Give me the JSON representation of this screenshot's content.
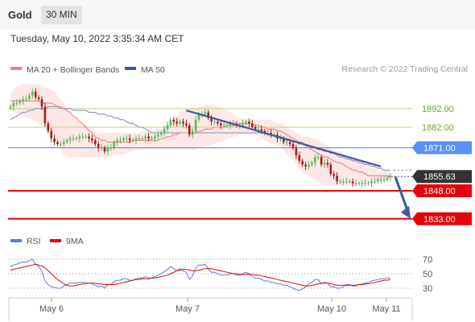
{
  "header": {
    "symbol": "Gold",
    "timeframe": "30 MIN"
  },
  "timestamp": "Tuesday, May 10, 2022 3:35:34 AM CET",
  "credit": "Research © 2022 Trading Central",
  "legend": {
    "ma20_bb": "MA 20 + Bollinger Bands",
    "ma50": "MA 50"
  },
  "rsi_legend": {
    "rsi": "RSI",
    "ma9": "9MA"
  },
  "colors": {
    "bull": "#5cb85c",
    "bear": "#a61c1c",
    "ma20": "#f08080",
    "ma50": "#8c8cc8",
    "band": "#fde3e3",
    "resistance": "#b8d87a",
    "pivot": "#5b8ff9",
    "support": "#e8000b",
    "trend": "#3c5aa0",
    "rsi_line": "#5b7bd5",
    "rsi_ma": "#e8000b"
  },
  "chart_data": [
    {
      "type": "candlestick",
      "symbol": "Gold",
      "interval": "30 MIN",
      "ylim": [
        1826,
        1907
      ],
      "x_tick_labels": [
        "May 6",
        "May 7",
        "May 10",
        "May 11"
      ],
      "levels": [
        {
          "value": 1892.0,
          "label": "1892.00",
          "kind": "resistance"
        },
        {
          "value": 1882.0,
          "label": "1882.00",
          "kind": "resistance"
        },
        {
          "value": 1871.0,
          "label": "1871.00",
          "kind": "pivot"
        },
        {
          "value": 1855.63,
          "label": "1855.63",
          "kind": "last"
        },
        {
          "value": 1848.0,
          "label": "1848.00",
          "kind": "support"
        },
        {
          "value": 1833.0,
          "label": "1833.00",
          "kind": "support"
        }
      ],
      "close": [
        1893,
        1895,
        1895,
        1896,
        1897,
        1897,
        1899,
        1901,
        1898,
        1897,
        1893,
        1884,
        1880,
        1876,
        1874,
        1873,
        1873,
        1874,
        1875,
        1876,
        1876,
        1876,
        1877,
        1877,
        1877,
        1876,
        1875,
        1873,
        1871,
        1871,
        1869,
        1871,
        1871,
        1874,
        1875,
        1875,
        1876,
        1876,
        1875,
        1875,
        1876,
        1876,
        1876,
        1877,
        1876,
        1876,
        1877,
        1878,
        1879,
        1881,
        1883,
        1886,
        1885,
        1884,
        1885,
        1884,
        1883,
        1878,
        1880,
        1886,
        1889,
        1889,
        1890,
        1887,
        1885,
        1885,
        1884,
        1883,
        1883,
        1883,
        1884,
        1884,
        1883,
        1883,
        1884,
        1885,
        1884,
        1882,
        1881,
        1881,
        1880,
        1879,
        1879,
        1878,
        1878,
        1876,
        1876,
        1874,
        1874,
        1873,
        1871,
        1867,
        1864,
        1862,
        1861,
        1862,
        1863,
        1866,
        1866,
        1862,
        1863,
        1862,
        1857,
        1856,
        1853,
        1853,
        1853,
        1853,
        1853,
        1852,
        1852,
        1852,
        1852,
        1852,
        1852,
        1853,
        1853,
        1854,
        1854,
        1854,
        1855,
        1855.63
      ],
      "ma20": [
        1896,
        1896,
        1896,
        1896,
        1896,
        1896,
        1896,
        1896,
        1896,
        1896,
        1895,
        1895,
        1895,
        1895,
        1894,
        1893,
        1893,
        1892,
        1891,
        1890,
        1888,
        1887,
        1885,
        1884,
        1882,
        1880,
        1879,
        1877,
        1876,
        1875,
        1875,
        1874,
        1874,
        1874,
        1874,
        1874,
        1874,
        1874,
        1874,
        1875,
        1875,
        1875,
        1875,
        1875,
        1875,
        1875,
        1875,
        1875,
        1876,
        1876,
        1877,
        1877,
        1878,
        1878,
        1879,
        1879,
        1879,
        1879,
        1879,
        1879,
        1880,
        1880,
        1881,
        1881,
        1881,
        1882,
        1882,
        1882,
        1882,
        1883,
        1883,
        1883,
        1883,
        1884,
        1884,
        1884,
        1884,
        1884,
        1883,
        1883,
        1882,
        1882,
        1881,
        1881,
        1881,
        1880,
        1880,
        1879,
        1878,
        1877,
        1876,
        1875,
        1874,
        1874,
        1872,
        1871,
        1870,
        1869,
        1868,
        1867,
        1866,
        1866,
        1865,
        1864,
        1863,
        1863,
        1862,
        1861,
        1860,
        1859,
        1859,
        1858,
        1858,
        1857,
        1856,
        1856,
        1856,
        1856,
        1856,
        1856,
        1856,
        1856
      ],
      "bollinger_upper": [
        1900,
        1902,
        1904,
        1904,
        1905,
        1905,
        1905,
        1905,
        1905,
        1905,
        1904,
        1903,
        1903,
        1902,
        1901,
        1899,
        1897,
        1895,
        1892,
        1890,
        1888,
        1886,
        1885,
        1884,
        1883,
        1882,
        1881,
        1880,
        1879,
        1879,
        1879,
        1879,
        1879,
        1879,
        1879,
        1879,
        1879,
        1879,
        1879,
        1879,
        1879,
        1879,
        1880,
        1880,
        1880,
        1880,
        1881,
        1881,
        1881,
        1882,
        1883,
        1884,
        1886,
        1888,
        1890,
        1891,
        1892,
        1892,
        1892,
        1892,
        1893,
        1893,
        1894,
        1894,
        1894,
        1894,
        1893,
        1893,
        1892,
        1891,
        1890,
        1889,
        1888,
        1887,
        1887,
        1886,
        1886,
        1886,
        1886,
        1886,
        1886,
        1886,
        1886,
        1886,
        1885,
        1884,
        1884,
        1883,
        1882,
        1881,
        1880,
        1879,
        1878,
        1877,
        1877,
        1877,
        1876,
        1876,
        1875,
        1874,
        1873,
        1872,
        1871,
        1870,
        1869,
        1869,
        1868,
        1867,
        1866,
        1866,
        1865,
        1864,
        1863,
        1862,
        1861,
        1860,
        1860,
        1859,
        1859,
        1859,
        1859,
        1859
      ],
      "bollinger_lower": [
        1891,
        1890,
        1889,
        1889,
        1888,
        1887,
        1887,
        1886,
        1885,
        1884,
        1883,
        1882,
        1880,
        1878,
        1876,
        1873,
        1870,
        1867,
        1866,
        1866,
        1866,
        1866,
        1866,
        1866,
        1866,
        1866,
        1866,
        1866,
        1866,
        1866,
        1866,
        1866,
        1866,
        1867,
        1867,
        1867,
        1868,
        1868,
        1869,
        1869,
        1870,
        1870,
        1870,
        1870,
        1870,
        1870,
        1870,
        1870,
        1870,
        1870,
        1870,
        1870,
        1870,
        1870,
        1870,
        1870,
        1870,
        1870,
        1870,
        1870,
        1871,
        1871,
        1872,
        1872,
        1873,
        1873,
        1874,
        1874,
        1875,
        1876,
        1876,
        1877,
        1877,
        1878,
        1878,
        1878,
        1878,
        1878,
        1878,
        1877,
        1876,
        1875,
        1874,
        1873,
        1873,
        1872,
        1871,
        1870,
        1868,
        1866,
        1864,
        1862,
        1860,
        1858,
        1857,
        1856,
        1855,
        1854,
        1853,
        1852,
        1851,
        1851,
        1851,
        1851,
        1851,
        1851,
        1851,
        1851,
        1851,
        1851,
        1851,
        1851,
        1851,
        1852,
        1852,
        1852,
        1852,
        1853,
        1853,
        1853,
        1853,
        1854
      ],
      "ma50": [
        1886,
        1887,
        1888,
        1889,
        1890,
        1890,
        1891,
        1891,
        1892,
        1892,
        1892,
        1892,
        1893,
        1893,
        1893,
        1893,
        1892,
        1892,
        1892,
        1892,
        1891,
        1891,
        1891,
        1891,
        1891,
        1890,
        1890,
        1890,
        1889,
        1889,
        1889,
        1888,
        1888,
        1887,
        1887,
        1886,
        1886,
        1885,
        1884,
        1884,
        1883,
        1882,
        1882,
        1881,
        1880,
        1879,
        1879,
        1879,
        1879,
        1879,
        1879,
        1879,
        1879,
        1879,
        1879,
        1879,
        1879,
        1879,
        1879,
        1879,
        1879,
        1879,
        1879,
        1879,
        1879,
        1879,
        1879,
        1879,
        1879,
        1879,
        1879,
        1879,
        1879,
        1879,
        1879,
        1879,
        1879,
        1879,
        1879,
        1879,
        1879,
        1879,
        1878,
        1878,
        1877,
        1877,
        1877,
        1876,
        1875,
        1875,
        1874,
        1874,
        1873,
        1873,
        1872,
        1872,
        1871,
        1871,
        1870,
        1870,
        1869,
        1869,
        1868,
        1868,
        1867,
        1866,
        1866,
        1865,
        1865,
        1864,
        1864,
        1863,
        1863,
        1862,
        1862,
        1861,
        1861,
        1860,
        1860,
        1859,
        1859,
        1859
      ],
      "trendline": {
        "from_bar": 56,
        "from_value": 1891,
        "to_bar": 118,
        "to_value": 1861
      },
      "forecast": {
        "from_value": 1855.63,
        "to_value": 1833.0
      }
    },
    {
      "type": "line",
      "name": "RSI",
      "ylim": [
        20,
        80
      ],
      "y_tick_labels": [
        "70",
        "50",
        "30"
      ],
      "y_ticks": [
        70,
        50,
        30
      ],
      "series": [
        {
          "name": "RSI",
          "values": [
            60,
            62,
            63,
            65,
            66,
            66,
            68,
            70,
            63,
            60,
            53,
            40,
            35,
            32,
            31,
            30,
            30,
            33,
            35,
            37,
            37,
            37,
            38,
            38,
            38,
            37,
            36,
            34,
            32,
            33,
            30,
            35,
            35,
            39,
            41,
            41,
            43,
            43,
            41,
            41,
            43,
            44,
            44,
            46,
            44,
            44,
            46,
            48,
            50,
            53,
            56,
            60,
            57,
            54,
            57,
            54,
            52,
            42,
            47,
            58,
            62,
            62,
            63,
            57,
            52,
            52,
            50,
            48,
            48,
            48,
            50,
            50,
            48,
            48,
            50,
            52,
            50,
            46,
            44,
            44,
            42,
            40,
            40,
            38,
            38,
            36,
            36,
            34,
            34,
            32,
            30,
            28,
            27,
            29,
            32,
            36,
            38,
            42,
            42,
            36,
            38,
            37,
            32,
            32,
            30,
            30,
            32,
            35,
            35,
            33,
            33,
            35,
            36,
            37,
            38,
            40,
            41,
            42,
            43,
            43,
            44,
            44
          ]
        },
        {
          "name": "9MA",
          "values": [
            55,
            56,
            57,
            58,
            59,
            60,
            61,
            62,
            63,
            62,
            61,
            58,
            54,
            50,
            46,
            42,
            39,
            36,
            34,
            33,
            33,
            34,
            35,
            36,
            36,
            37,
            37,
            37,
            36,
            36,
            35,
            35,
            35,
            35,
            36,
            37,
            38,
            39,
            40,
            41,
            42,
            42,
            43,
            43,
            43,
            44,
            44,
            45,
            46,
            47,
            48,
            50,
            52,
            54,
            55,
            56,
            56,
            55,
            54,
            54,
            55,
            56,
            57,
            57,
            57,
            56,
            55,
            54,
            53,
            52,
            51,
            50,
            50,
            49,
            49,
            49,
            49,
            49,
            48,
            48,
            47,
            46,
            45,
            44,
            43,
            42,
            41,
            40,
            39,
            38,
            37,
            36,
            35,
            34,
            33,
            33,
            34,
            35,
            36,
            37,
            37,
            37,
            36,
            35,
            34,
            34,
            34,
            34,
            34,
            34,
            34,
            35,
            35,
            36,
            36,
            37,
            38,
            39,
            40,
            41,
            41,
            42
          ]
        }
      ]
    }
  ]
}
